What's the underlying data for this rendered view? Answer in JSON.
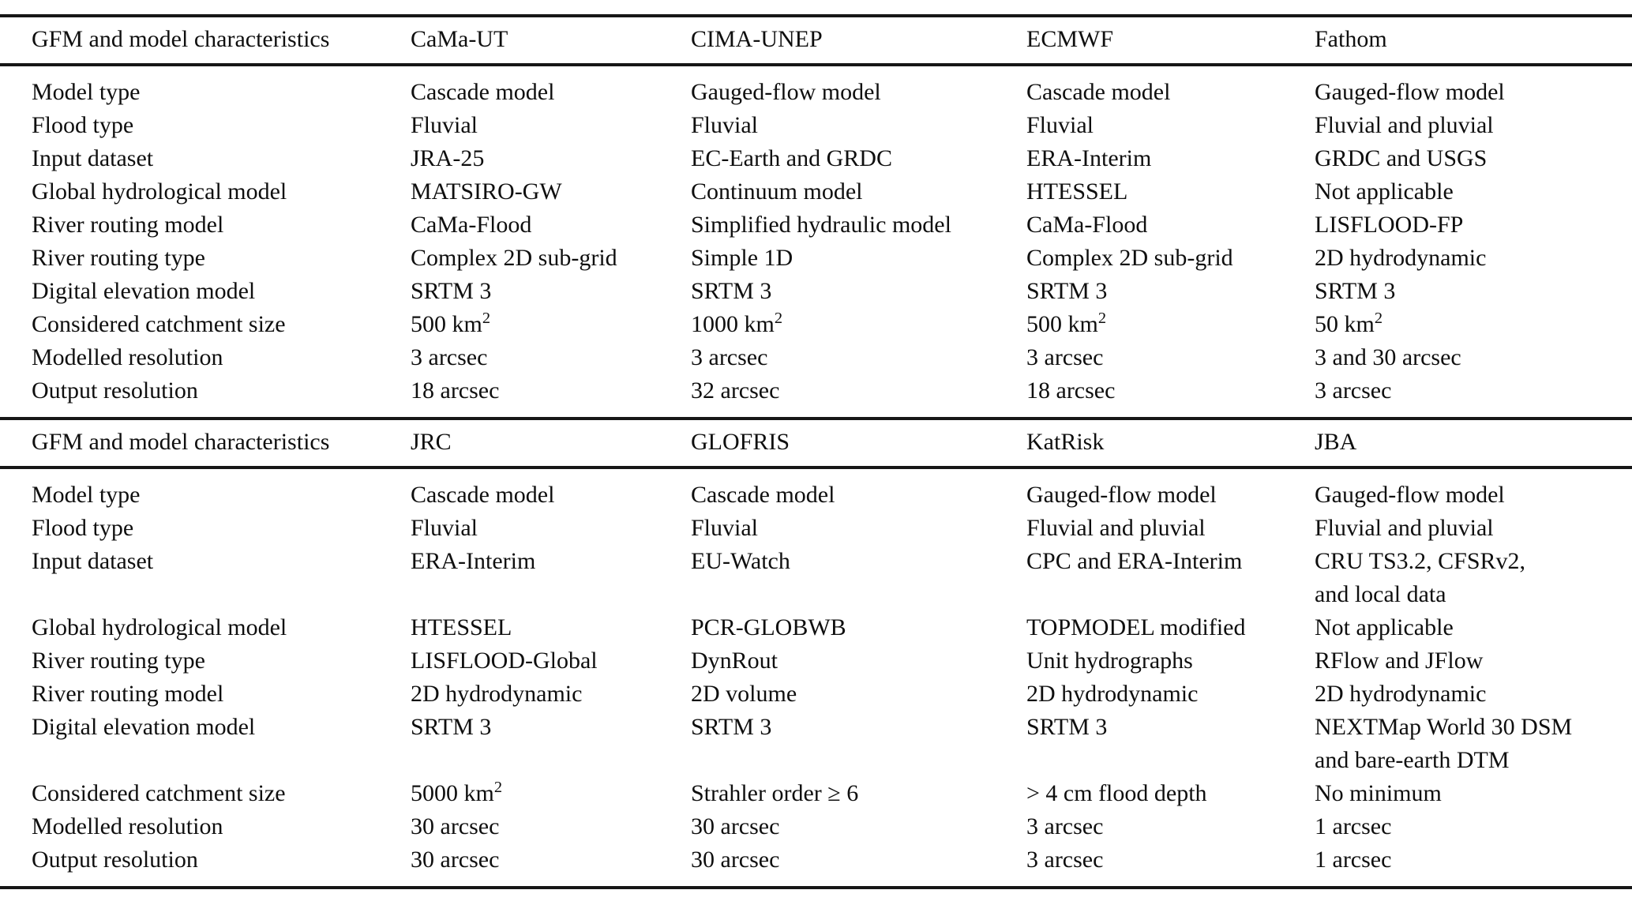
{
  "page": {
    "background_color": "#ffffff",
    "text_color": "#0f0f0f",
    "rule_color": "#161616"
  },
  "table": {
    "sections": [
      {
        "header": [
          "GFM and model characteristics",
          "CaMa-UT",
          "CIMA-UNEP",
          "ECMWF",
          "Fathom"
        ],
        "rows": [
          {
            "label": "Model type",
            "values": [
              "Cascade model",
              "Gauged-flow model",
              "Cascade model",
              "Gauged-flow model"
            ]
          },
          {
            "label": "Flood type",
            "values": [
              "Fluvial",
              "Fluvial",
              "Fluvial",
              "Fluvial and pluvial"
            ]
          },
          {
            "label": "Input dataset",
            "values": [
              "JRA-25",
              "EC-Earth and GRDC",
              "ERA-Interim",
              "GRDC and USGS"
            ]
          },
          {
            "label": "Global hydrological model",
            "values": [
              "MATSIRO-GW",
              "Continuum model",
              "HTESSEL",
              "Not applicable"
            ]
          },
          {
            "label": "River routing model",
            "values": [
              "CaMa-Flood",
              "Simplified hydraulic model",
              "CaMa-Flood",
              "LISFLOOD-FP"
            ]
          },
          {
            "label": "River routing type",
            "values": [
              "Complex 2D sub-grid",
              "Simple 1D",
              "Complex 2D sub-grid",
              "2D hydrodynamic"
            ]
          },
          {
            "label": "Digital elevation model",
            "values": [
              "SRTM 3",
              "SRTM 3",
              "SRTM 3",
              "SRTM 3"
            ]
          },
          {
            "label": "Considered catchment size",
            "values": [
              "500 km²",
              "1000 km²",
              "500 km²",
              "50 km²"
            ]
          },
          {
            "label": "Modelled resolution",
            "values": [
              "3 arcsec",
              "3 arcsec",
              "3 arcsec",
              "3 and 30 arcsec"
            ]
          },
          {
            "label": "Output resolution",
            "values": [
              "18 arcsec",
              "32 arcsec",
              "18 arcsec",
              "3 arcsec"
            ]
          }
        ]
      },
      {
        "header": [
          "GFM and model characteristics",
          "JRC",
          "GLOFRIS",
          "KatRisk",
          "JBA"
        ],
        "rows": [
          {
            "label": "Model type",
            "values": [
              "Cascade model",
              "Cascade model",
              "Gauged-flow model",
              "Gauged-flow model"
            ]
          },
          {
            "label": "Flood type",
            "values": [
              "Fluvial",
              "Fluvial",
              "Fluvial and pluvial",
              "Fluvial and pluvial"
            ]
          },
          {
            "label": "Input dataset",
            "values": [
              "ERA-Interim",
              "EU-Watch",
              "CPC and ERA-Interim",
              "CRU TS3.2, CFSRv2,\nand local data"
            ]
          },
          {
            "label": "Global hydrological model",
            "values": [
              "HTESSEL",
              "PCR-GLOBWB",
              "TOPMODEL modified",
              "Not applicable"
            ]
          },
          {
            "label": "River routing type",
            "values": [
              "LISFLOOD-Global",
              "DynRout",
              "Unit hydrographs",
              "RFlow and JFlow"
            ]
          },
          {
            "label": "River routing model",
            "values": [
              "2D hydrodynamic",
              "2D volume",
              "2D hydrodynamic",
              "2D hydrodynamic"
            ]
          },
          {
            "label": "Digital elevation model",
            "values": [
              "SRTM 3",
              "SRTM 3",
              "SRTM 3",
              "NEXTMap World 30 DSM\nand bare-earth DTM"
            ]
          },
          {
            "label": "Considered catchment size",
            "values": [
              "5000 km²",
              "Strahler order ≥ 6",
              "> 4 cm flood depth",
              "No minimum"
            ]
          },
          {
            "label": "Modelled resolution",
            "values": [
              "30 arcsec",
              "30 arcsec",
              "3 arcsec",
              "1 arcsec"
            ]
          },
          {
            "label": "Output resolution",
            "values": [
              "30 arcsec",
              "30 arcsec",
              "3 arcsec",
              "1 arcsec"
            ]
          }
        ]
      }
    ]
  }
}
